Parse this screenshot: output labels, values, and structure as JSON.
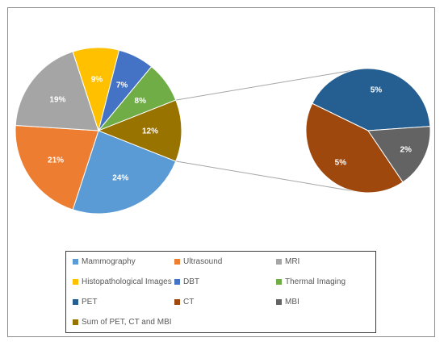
{
  "chart_data": {
    "type": "pie",
    "title": "",
    "main_pie": {
      "slices": [
        {
          "name": "Mammography",
          "value": 24,
          "label": "24%",
          "color": "#5b9bd5"
        },
        {
          "name": "Ultrasound",
          "value": 21,
          "label": "21%",
          "color": "#ed7d31"
        },
        {
          "name": "MRI",
          "value": 19,
          "label": "19%",
          "color": "#a5a5a5"
        },
        {
          "name": "Histopathological Images",
          "value": 9,
          "label": "9%",
          "color": "#ffc000"
        },
        {
          "name": "DBT",
          "value": 7,
          "label": "7%",
          "color": "#4472c4"
        },
        {
          "name": "Thermal Imaging",
          "value": 8,
          "label": "8%",
          "color": "#70ad47"
        },
        {
          "name": "Sum of PET, CT and MBI",
          "value": 12,
          "label": "12%",
          "color": "#997300"
        }
      ]
    },
    "secondary_pie": {
      "breakdown_of": "Sum of PET, CT and MBI",
      "slices": [
        {
          "name": "PET",
          "value": 5,
          "label": "5%",
          "color": "#255e91"
        },
        {
          "name": "CT",
          "value": 5,
          "label": "5%",
          "color": "#9e480e"
        },
        {
          "name": "MBI",
          "value": 2,
          "label": "2%",
          "color": "#636363"
        }
      ]
    },
    "legend": {
      "placement": "bottom",
      "entries": [
        {
          "name": "Mammography",
          "color": "#5b9bd5"
        },
        {
          "name": "Ultrasound",
          "color": "#ed7d31"
        },
        {
          "name": "MRI",
          "color": "#a5a5a5"
        },
        {
          "name": "Histopathological Images",
          "color": "#ffc000"
        },
        {
          "name": "DBT",
          "color": "#4472c4"
        },
        {
          "name": "Thermal Imaging",
          "color": "#70ad47"
        },
        {
          "name": "PET",
          "color": "#255e91"
        },
        {
          "name": "CT",
          "color": "#9e480e"
        },
        {
          "name": "MBI",
          "color": "#636363"
        },
        {
          "name": "Sum of PET, CT and MBI",
          "color": "#997300"
        }
      ]
    }
  }
}
